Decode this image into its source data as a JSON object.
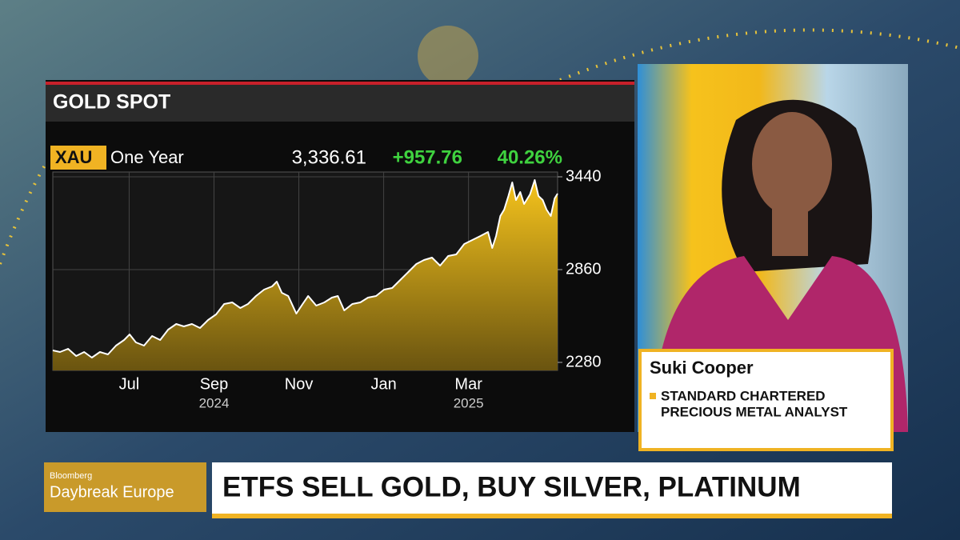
{
  "chart_data": {
    "type": "area",
    "title": "GOLD SPOT",
    "ticker": "XAU",
    "period": "One Year",
    "last": "3,336.61",
    "change": "+957.76",
    "change_pct": "40.26%",
    "x": [
      0.2,
      0.37,
      0.56,
      0.75,
      0.94,
      1.12,
      1.31,
      1.5,
      1.69,
      1.88,
      2.01,
      2.16,
      2.35,
      2.54,
      2.73,
      2.92,
      3.11,
      3.29,
      3.48,
      3.67,
      3.86,
      4.05,
      4.24,
      4.43,
      4.62,
      4.8,
      4.99,
      5.18,
      5.37,
      5.48,
      5.6,
      5.75,
      5.94,
      6.09,
      6.22,
      6.41,
      6.6,
      6.78,
      6.92,
      7.07,
      7.26,
      7.45,
      7.63,
      7.82,
      8.01,
      8.2,
      8.39,
      8.58,
      8.77,
      8.95,
      9.14,
      9.33,
      9.52,
      9.71,
      9.9,
      10.09,
      10.28,
      10.46,
      10.56,
      10.65,
      10.75,
      10.84,
      10.94,
      11.03,
      11.12,
      11.22,
      11.31,
      11.45,
      11.56,
      11.65,
      11.75,
      11.84,
      11.94,
      12.03,
      12.1
    ],
    "values": [
      2355,
      2345,
      2365,
      2320,
      2345,
      2310,
      2345,
      2330,
      2385,
      2420,
      2455,
      2405,
      2385,
      2445,
      2420,
      2485,
      2520,
      2505,
      2520,
      2495,
      2545,
      2580,
      2645,
      2655,
      2620,
      2645,
      2695,
      2735,
      2755,
      2785,
      2715,
      2695,
      2585,
      2645,
      2695,
      2635,
      2655,
      2685,
      2695,
      2605,
      2645,
      2655,
      2685,
      2695,
      2735,
      2745,
      2795,
      2845,
      2895,
      2920,
      2935,
      2885,
      2945,
      2955,
      3020,
      3045,
      3070,
      3095,
      2995,
      3070,
      3195,
      3235,
      3320,
      3405,
      3295,
      3345,
      3270,
      3330,
      3420,
      3320,
      3295,
      3235,
      3195,
      3305,
      3335
    ],
    "color": "#e8b417",
    "line_color": "#ffffff",
    "xlim": [
      0.2,
      12.1
    ],
    "xticks": [
      {
        "value": 2,
        "label": "Jul"
      },
      {
        "value": 4,
        "label": "Sep"
      },
      {
        "value": 6,
        "label": "Nov"
      },
      {
        "value": 8,
        "label": "Jan"
      },
      {
        "value": 10,
        "label": "Mar"
      }
    ],
    "x_year_labels": [
      {
        "value": 4,
        "label": "2024"
      },
      {
        "value": 10,
        "label": "2025"
      }
    ],
    "ylim": [
      2230,
      3470
    ],
    "yticks": [
      2280,
      2860,
      3440
    ],
    "grid": true
  },
  "guest": {
    "name": "Suki Cooper",
    "affiliation": "STANDARD CHARTERED",
    "role": "PRECIOUS METAL ANALYST"
  },
  "program": {
    "network": "Bloomberg",
    "show": "Daybreak Europe"
  },
  "headline": "ETFS SELL GOLD, BUY SILVER, PLATINUM"
}
